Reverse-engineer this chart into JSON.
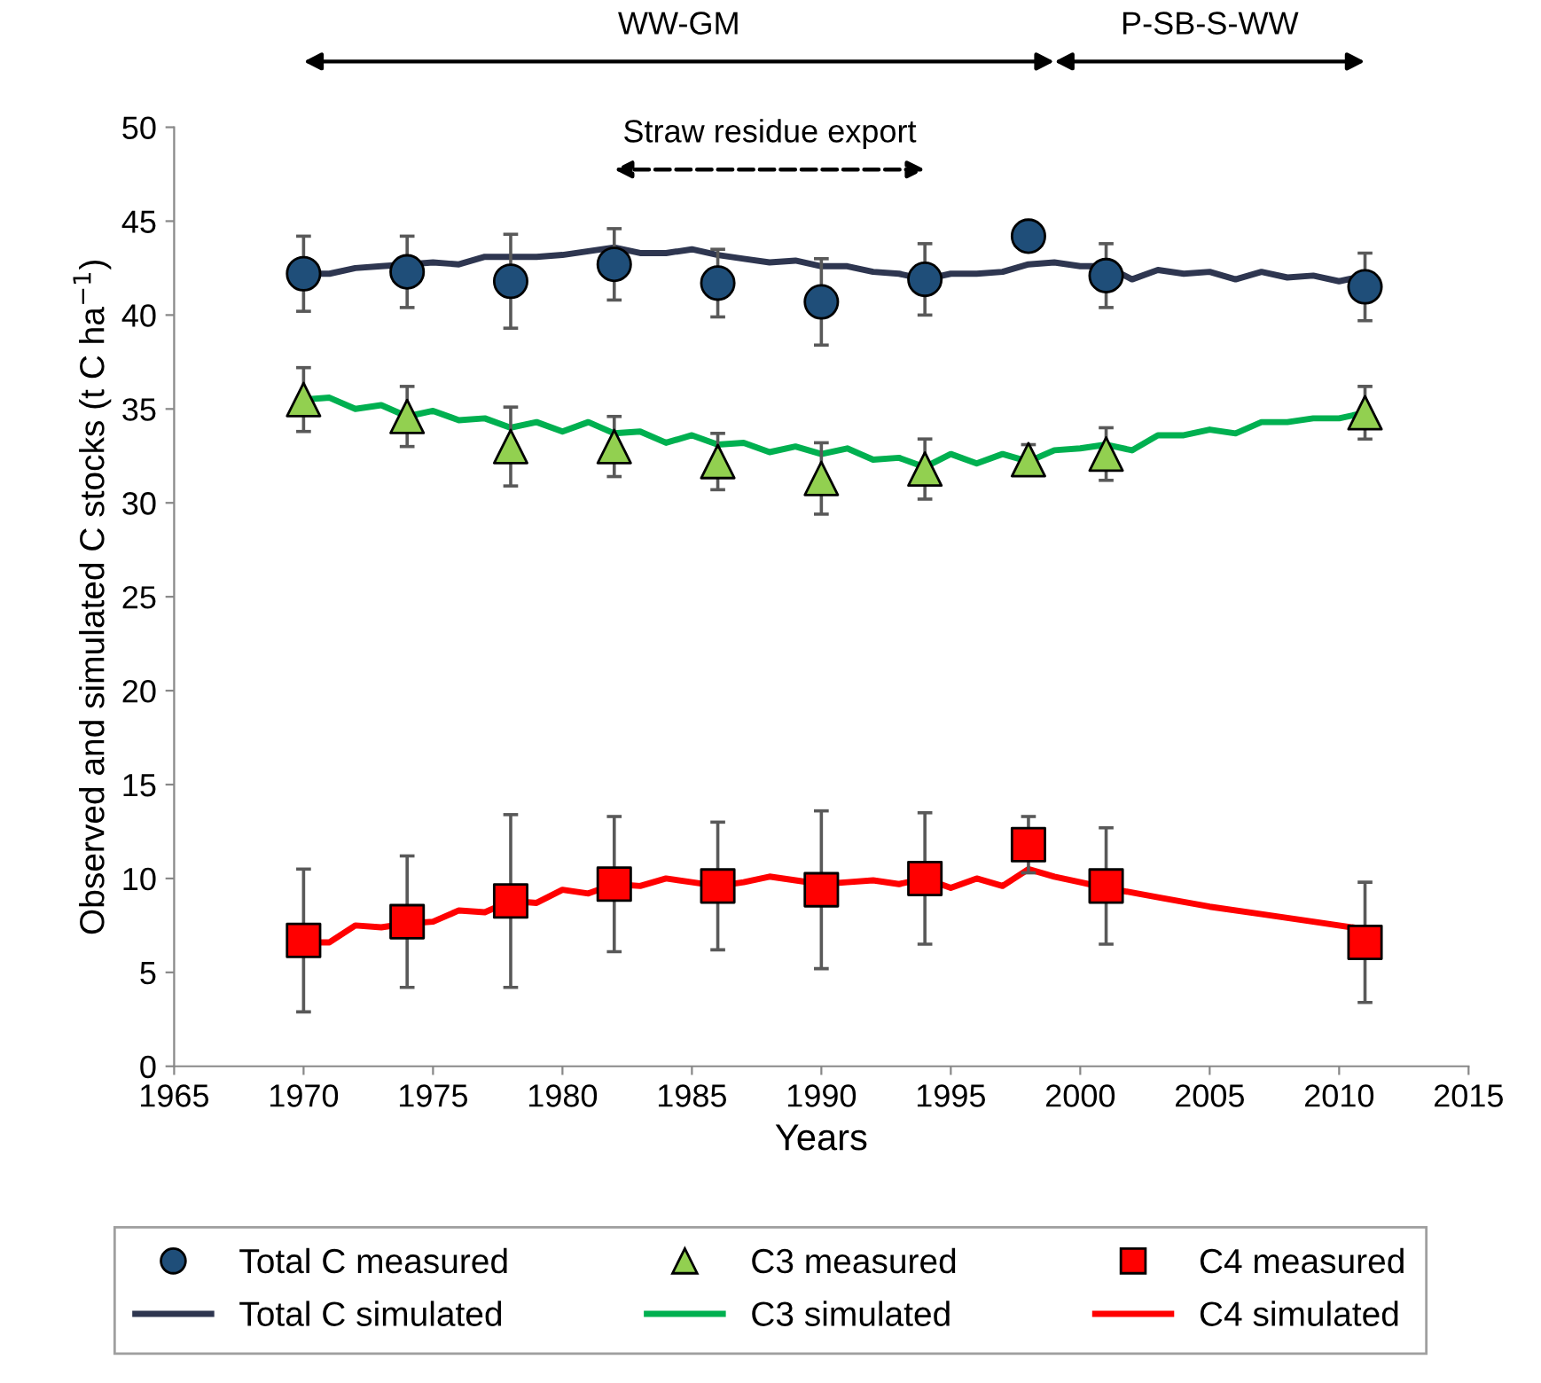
{
  "chart_data": {
    "type": "line",
    "xlabel": "Years",
    "ylabel": "Observed and simulated C stocks (t C ha$^{−1}$)",
    "xlim": [
      1965,
      2015
    ],
    "xticks": [
      1965,
      1970,
      1975,
      1980,
      1985,
      1990,
      1995,
      2000,
      2005,
      2010,
      2015
    ],
    "ylim": [
      0,
      50
    ],
    "yticks": [
      0,
      5,
      10,
      15,
      20,
      25,
      30,
      35,
      40,
      45,
      50
    ],
    "grid": false,
    "legend": "bottom",
    "annotations": [
      "WW-GM",
      "P-SB-S-WW",
      "Straw residue export"
    ],
    "series": [
      {
        "name": "Total C measured",
        "type": "scatter",
        "marker": "circle",
        "color": "#1f4e79",
        "x": [
          1970,
          1974,
          1978,
          1982,
          1986,
          1990,
          1994,
          1998,
          2001,
          2011
        ],
        "values": [
          42.2,
          42.3,
          41.8,
          42.7,
          41.7,
          40.7,
          41.9,
          44.2,
          42.1,
          41.5
        ],
        "errors": [
          2.0,
          1.9,
          2.5,
          1.9,
          1.8,
          2.3,
          1.9,
          0.7,
          1.7,
          1.8
        ]
      },
      {
        "name": "Total C simulated",
        "type": "line",
        "color": "#2e3650",
        "x": [
          1970,
          1971,
          1972,
          1973,
          1974,
          1975,
          1976,
          1977,
          1978,
          1979,
          1980,
          1981,
          1982,
          1983,
          1984,
          1985,
          1986,
          1987,
          1988,
          1989,
          1990,
          1991,
          1992,
          1993,
          1994,
          1995,
          1996,
          1997,
          1998,
          1999,
          2000,
          2001,
          2002,
          2003,
          2004,
          2005,
          2006,
          2007,
          2008,
          2009,
          2010,
          2011
        ],
        "values": [
          42.2,
          42.2,
          42.5,
          42.6,
          42.7,
          42.8,
          42.7,
          43.1,
          43.1,
          43.1,
          43.2,
          43.4,
          43.6,
          43.3,
          43.3,
          43.5,
          43.2,
          43.0,
          42.8,
          42.9,
          42.6,
          42.6,
          42.3,
          42.2,
          41.9,
          42.2,
          42.2,
          42.3,
          42.7,
          42.8,
          42.6,
          42.6,
          41.9,
          42.4,
          42.2,
          42.3,
          41.9,
          42.3,
          42.0,
          42.1,
          41.8,
          42.1
        ]
      },
      {
        "name": "C3 measured",
        "type": "scatter",
        "marker": "triangle",
        "color": "#92d050",
        "x": [
          1970,
          1974,
          1978,
          1982,
          1986,
          1990,
          1994,
          1998,
          2001,
          2011
        ],
        "values": [
          35.5,
          34.6,
          33.0,
          33.0,
          32.2,
          31.3,
          31.8,
          32.3,
          32.6,
          34.8
        ],
        "errors": [
          1.7,
          1.6,
          2.1,
          1.6,
          1.5,
          1.9,
          1.6,
          0.8,
          1.4,
          1.4
        ]
      },
      {
        "name": "C3 simulated",
        "type": "line",
        "color": "#00b050",
        "x": [
          1970,
          1971,
          1972,
          1973,
          1974,
          1975,
          1976,
          1977,
          1978,
          1979,
          1980,
          1981,
          1982,
          1983,
          1984,
          1985,
          1986,
          1987,
          1988,
          1989,
          1990,
          1991,
          1992,
          1993,
          1994,
          1995,
          1996,
          1997,
          1998,
          1999,
          2000,
          2001,
          2002,
          2003,
          2004,
          2005,
          2006,
          2007,
          2008,
          2009,
          2010,
          2011
        ],
        "values": [
          35.5,
          35.6,
          35.0,
          35.2,
          34.6,
          34.9,
          34.4,
          34.5,
          34.0,
          34.3,
          33.8,
          34.3,
          33.7,
          33.8,
          33.2,
          33.6,
          33.1,
          33.2,
          32.7,
          33.0,
          32.6,
          32.9,
          32.3,
          32.4,
          31.9,
          32.6,
          32.1,
          32.6,
          32.2,
          32.8,
          32.9,
          33.1,
          32.8,
          33.6,
          33.6,
          33.9,
          33.7,
          34.3,
          34.3,
          34.5,
          34.5,
          34.8
        ]
      },
      {
        "name": "C4 measured",
        "type": "scatter",
        "marker": "square",
        "color": "#ff0000",
        "x": [
          1970,
          1974,
          1978,
          1982,
          1986,
          1990,
          1994,
          1998,
          2001,
          2011
        ],
        "values": [
          6.7,
          7.7,
          8.8,
          9.7,
          9.6,
          9.4,
          10.0,
          11.8,
          9.6,
          6.6
        ],
        "errors": [
          3.8,
          3.5,
          4.6,
          3.6,
          3.4,
          4.2,
          3.5,
          1.5,
          3.1,
          3.2
        ]
      },
      {
        "name": "C4 simulated",
        "type": "line",
        "color": "#ff0000",
        "x": [
          1970,
          1971,
          1972,
          1973,
          1974,
          1975,
          1976,
          1977,
          1978,
          1979,
          1980,
          1981,
          1982,
          1983,
          1984,
          1985,
          1986,
          1987,
          1988,
          1989,
          1990,
          1991,
          1992,
          1993,
          1994,
          1995,
          1996,
          1997,
          1998,
          1999,
          2000,
          2001,
          2003,
          2005,
          2007,
          2009,
          2011
        ],
        "values": [
          6.6,
          6.6,
          7.5,
          7.4,
          7.6,
          7.7,
          8.3,
          8.2,
          8.8,
          8.7,
          9.4,
          9.2,
          9.7,
          9.6,
          10.0,
          9.8,
          9.6,
          9.8,
          10.1,
          9.9,
          9.7,
          9.8,
          9.9,
          9.7,
          10.0,
          9.5,
          10.0,
          9.6,
          10.5,
          10.1,
          9.8,
          9.5,
          9.0,
          8.5,
          8.1,
          7.7,
          7.3
        ]
      }
    ]
  }
}
